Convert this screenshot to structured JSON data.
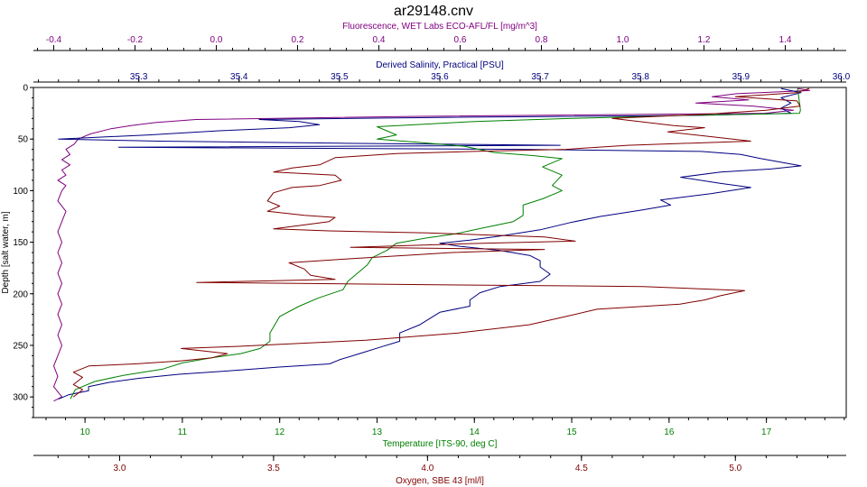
{
  "chart_data": {
    "type": "line",
    "title": "ar29148.cnv",
    "y_axis": {
      "label": "Depth [salt water, m]",
      "range": [
        0,
        320
      ],
      "reversed": true,
      "ticks": [
        0,
        50,
        100,
        150,
        200,
        250,
        300
      ],
      "tick_labels": [
        "0",
        "50",
        "100",
        "150",
        "200",
        "250",
        "300"
      ]
    },
    "x_axes": [
      {
        "id": "fluorescence",
        "label": "Fluorescence, WET Labs ECO-AFL/FL [mg/m^3]",
        "position": "top-outer",
        "color": "#800080",
        "range": [
          -0.45,
          1.55
        ],
        "ticks": [
          -0.4,
          -0.2,
          0.0,
          0.2,
          0.4,
          0.6,
          0.8,
          1.0,
          1.2,
          1.4
        ],
        "tick_labels": [
          "-0.4",
          "-0.2",
          "0.0",
          "0.2",
          "0.4",
          "0.6",
          "0.8",
          "1.0",
          "1.2",
          "1.4"
        ]
      },
      {
        "id": "salinity",
        "label": "Derived Salinity, Practical [PSU]",
        "position": "top-inner",
        "color": "#000080",
        "range": [
          35.195,
          36.005
        ],
        "ticks": [
          35.3,
          35.4,
          35.5,
          35.6,
          35.7,
          35.8,
          35.9,
          36.0
        ],
        "tick_labels": [
          "35.3",
          "35.4",
          "35.5",
          "35.6",
          "35.7",
          "35.8",
          "35.9",
          "36.0"
        ]
      },
      {
        "id": "temperature",
        "label": "Temperature [ITS-90, deg C]",
        "position": "bottom-inner",
        "color": "#008000",
        "range": [
          9.47,
          17.82
        ],
        "ticks": [
          10,
          11,
          12,
          13,
          14,
          15,
          16,
          17
        ],
        "tick_labels": [
          "10",
          "11",
          "12",
          "13",
          "14",
          "15",
          "16",
          "17"
        ]
      },
      {
        "id": "oxygen",
        "label": "Oxygen, SBE 43 [ml/l]",
        "position": "bottom-outer",
        "color": "#800000",
        "range": [
          2.72,
          5.36
        ],
        "ticks": [
          3.0,
          3.5,
          4.0,
          4.5,
          5.0
        ],
        "tick_labels": [
          "3.0",
          "3.5",
          "4.0",
          "4.5",
          "5.0"
        ]
      }
    ],
    "grid": false,
    "legend": "none",
    "series": [
      {
        "axis": "fluorescence",
        "color": "#800080",
        "points": [
          [
            1.43,
            1
          ],
          [
            1.46,
            3
          ],
          [
            1.28,
            6
          ],
          [
            1.22,
            9
          ],
          [
            1.31,
            12
          ],
          [
            1.18,
            15
          ],
          [
            1.32,
            18
          ],
          [
            1.42,
            22
          ],
          [
            1.35,
            25
          ],
          [
            0.5,
            28
          ],
          [
            -0.05,
            31
          ],
          [
            -0.15,
            34
          ],
          [
            -0.21,
            37
          ],
          [
            -0.26,
            40
          ],
          [
            -0.31,
            45
          ],
          [
            -0.34,
            50
          ],
          [
            -0.35,
            55
          ],
          [
            -0.37,
            60
          ],
          [
            -0.36,
            65
          ],
          [
            -0.38,
            70
          ],
          [
            -0.36,
            75
          ],
          [
            -0.38,
            80
          ],
          [
            -0.37,
            85
          ],
          [
            -0.39,
            90
          ],
          [
            -0.37,
            95
          ],
          [
            -0.38,
            100
          ],
          [
            -0.39,
            110
          ],
          [
            -0.37,
            120
          ],
          [
            -0.38,
            130
          ],
          [
            -0.39,
            140
          ],
          [
            -0.38,
            150
          ],
          [
            -0.39,
            160
          ],
          [
            -0.38,
            170
          ],
          [
            -0.39,
            180
          ],
          [
            -0.38,
            190
          ],
          [
            -0.39,
            200
          ],
          [
            -0.38,
            210
          ],
          [
            -0.39,
            220
          ],
          [
            -0.38,
            230
          ],
          [
            -0.39,
            240
          ],
          [
            -0.38,
            250
          ],
          [
            -0.39,
            260
          ],
          [
            -0.4,
            270
          ],
          [
            -0.39,
            280
          ],
          [
            -0.4,
            290
          ],
          [
            -0.39,
            295
          ],
          [
            -0.38,
            300
          ],
          [
            -0.4,
            304
          ]
        ]
      },
      {
        "axis": "salinity",
        "color": "#000080",
        "points": [
          [
            35.94,
            1
          ],
          [
            35.96,
            5
          ],
          [
            35.94,
            10
          ],
          [
            35.95,
            15
          ],
          [
            35.94,
            20
          ],
          [
            35.95,
            25
          ],
          [
            35.86,
            27
          ],
          [
            35.6,
            29
          ],
          [
            35.42,
            31
          ],
          [
            35.46,
            33
          ],
          [
            35.48,
            36
          ],
          [
            35.45,
            39
          ],
          [
            35.38,
            42
          ],
          [
            35.31,
            46
          ],
          [
            35.22,
            50
          ],
          [
            35.32,
            52
          ],
          [
            35.5,
            54
          ],
          [
            35.72,
            56
          ],
          [
            35.28,
            58
          ],
          [
            35.68,
            60
          ],
          [
            35.86,
            62
          ],
          [
            35.9,
            65
          ],
          [
            35.92,
            69
          ],
          [
            35.96,
            76
          ],
          [
            35.93,
            79
          ],
          [
            35.88,
            82
          ],
          [
            35.84,
            87
          ],
          [
            35.88,
            93
          ],
          [
            35.91,
            97
          ],
          [
            35.87,
            103
          ],
          [
            35.82,
            109
          ],
          [
            35.83,
            114
          ],
          [
            35.8,
            119
          ],
          [
            35.76,
            125
          ],
          [
            35.73,
            131
          ],
          [
            35.7,
            138
          ],
          [
            35.66,
            144
          ],
          [
            35.63,
            148
          ],
          [
            35.6,
            151
          ],
          [
            35.62,
            154
          ],
          [
            35.66,
            158
          ],
          [
            35.69,
            163
          ],
          [
            35.7,
            168
          ],
          [
            35.7,
            174
          ],
          [
            35.71,
            181
          ],
          [
            35.7,
            188
          ],
          [
            35.66,
            193
          ],
          [
            35.64,
            199
          ],
          [
            35.63,
            206
          ],
          [
            35.63,
            212
          ],
          [
            35.6,
            218
          ],
          [
            35.59,
            224
          ],
          [
            35.58,
            230
          ],
          [
            35.56,
            238
          ],
          [
            35.56,
            246
          ],
          [
            35.54,
            252
          ],
          [
            35.52,
            258
          ],
          [
            35.5,
            264
          ],
          [
            35.49,
            268
          ],
          [
            35.44,
            271
          ],
          [
            35.4,
            274
          ],
          [
            35.34,
            278
          ],
          [
            35.3,
            282
          ],
          [
            35.27,
            286
          ],
          [
            35.25,
            290
          ],
          [
            35.25,
            294
          ],
          [
            35.23,
            298
          ],
          [
            35.22,
            302
          ]
        ]
      },
      {
        "axis": "temperature",
        "color": "#008000",
        "points": [
          [
            17.32,
            1
          ],
          [
            17.33,
            8
          ],
          [
            17.34,
            15
          ],
          [
            17.35,
            22
          ],
          [
            17.34,
            25
          ],
          [
            16.2,
            27
          ],
          [
            15.0,
            30
          ],
          [
            14.0,
            33
          ],
          [
            13.0,
            38
          ],
          [
            13.1,
            42
          ],
          [
            13.2,
            46
          ],
          [
            13.0,
            50
          ],
          [
            13.4,
            53
          ],
          [
            13.9,
            57
          ],
          [
            14.2,
            63
          ],
          [
            14.6,
            66
          ],
          [
            14.9,
            69
          ],
          [
            14.7,
            77
          ],
          [
            14.9,
            85
          ],
          [
            14.8,
            95
          ],
          [
            14.9,
            100
          ],
          [
            14.7,
            108
          ],
          [
            14.5,
            114
          ],
          [
            14.5,
            124
          ],
          [
            14.4,
            130
          ],
          [
            14.1,
            136
          ],
          [
            13.8,
            142
          ],
          [
            13.5,
            146
          ],
          [
            13.2,
            151
          ],
          [
            13.1,
            158
          ],
          [
            12.95,
            165
          ],
          [
            12.9,
            172
          ],
          [
            12.8,
            180
          ],
          [
            12.7,
            188
          ],
          [
            12.65,
            196
          ],
          [
            12.4,
            204
          ],
          [
            12.2,
            212
          ],
          [
            12.0,
            222
          ],
          [
            11.95,
            230
          ],
          [
            11.9,
            238
          ],
          [
            11.9,
            246
          ],
          [
            11.8,
            253
          ],
          [
            11.6,
            258
          ],
          [
            11.3,
            262
          ],
          [
            11.0,
            267
          ],
          [
            10.8,
            273
          ],
          [
            10.4,
            279
          ],
          [
            10.1,
            285
          ],
          [
            9.9,
            293
          ],
          [
            9.85,
            302
          ]
        ]
      },
      {
        "axis": "oxygen",
        "color": "#800000",
        "points": [
          [
            5.24,
            1
          ],
          [
            5.2,
            5
          ],
          [
            5.0,
            9
          ],
          [
            5.2,
            13
          ],
          [
            5.21,
            18
          ],
          [
            5.1,
            22
          ],
          [
            4.9,
            26
          ],
          [
            4.6,
            30
          ],
          [
            4.8,
            37
          ],
          [
            4.9,
            39
          ],
          [
            4.78,
            43
          ],
          [
            4.9,
            47
          ],
          [
            5.05,
            52
          ],
          [
            4.65,
            56
          ],
          [
            4.45,
            60
          ],
          [
            4.15,
            62
          ],
          [
            3.9,
            64
          ],
          [
            3.7,
            68
          ],
          [
            3.65,
            75
          ],
          [
            3.56,
            78
          ],
          [
            3.5,
            82
          ],
          [
            3.7,
            85
          ],
          [
            3.72,
            90
          ],
          [
            3.65,
            95
          ],
          [
            3.56,
            97
          ],
          [
            3.5,
            102
          ],
          [
            3.48,
            110
          ],
          [
            3.52,
            115
          ],
          [
            3.48,
            120
          ],
          [
            3.6,
            124
          ],
          [
            3.7,
            126
          ],
          [
            3.68,
            130
          ],
          [
            3.58,
            134
          ],
          [
            3.5,
            137
          ],
          [
            3.68,
            139
          ],
          [
            4.0,
            141
          ],
          [
            4.38,
            145
          ],
          [
            4.48,
            149
          ],
          [
            4.18,
            151
          ],
          [
            3.75,
            155
          ],
          [
            4.38,
            157
          ],
          [
            4.08,
            160
          ],
          [
            3.92,
            163
          ],
          [
            3.75,
            166
          ],
          [
            3.55,
            170
          ],
          [
            3.6,
            176
          ],
          [
            3.62,
            182
          ],
          [
            3.7,
            186
          ],
          [
            3.25,
            189
          ],
          [
            3.95,
            191
          ],
          [
            4.7,
            193
          ],
          [
            5.03,
            197
          ],
          [
            4.95,
            202
          ],
          [
            4.9,
            206
          ],
          [
            4.82,
            210
          ],
          [
            4.55,
            215
          ],
          [
            4.45,
            222
          ],
          [
            4.33,
            230
          ],
          [
            4.1,
            238
          ],
          [
            3.8,
            245
          ],
          [
            3.38,
            251
          ],
          [
            3.2,
            253
          ],
          [
            3.35,
            258
          ],
          [
            3.3,
            262
          ],
          [
            3.2,
            265
          ],
          [
            3.05,
            268
          ],
          [
            2.9,
            270
          ],
          [
            2.85,
            276
          ],
          [
            2.88,
            281
          ],
          [
            2.85,
            288
          ],
          [
            2.88,
            293
          ],
          [
            2.85,
            300
          ]
        ]
      }
    ]
  }
}
